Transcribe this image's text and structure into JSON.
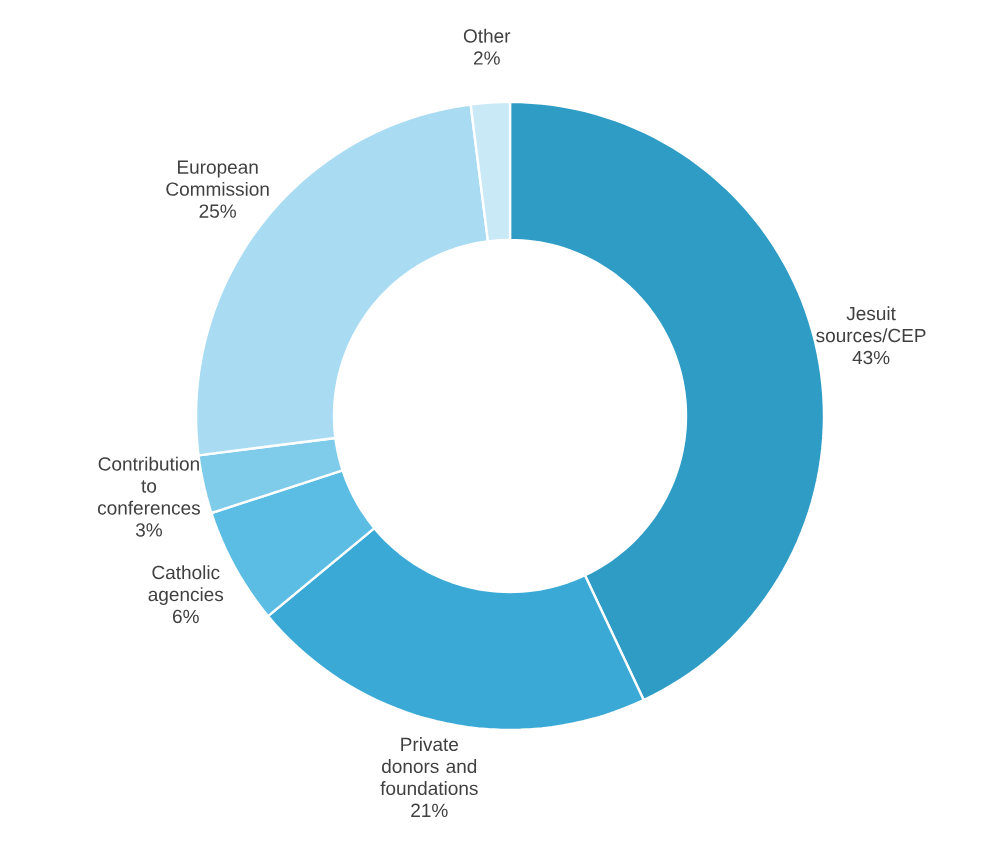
{
  "chart_data": {
    "type": "donut",
    "categories": [
      "Jesuit sources/CEP",
      "Private donors and foundations",
      "Catholic agencies",
      "Contribution to conferences",
      "European Commission",
      "Other"
    ],
    "values": [
      43,
      21,
      6,
      3,
      25,
      2
    ],
    "value_labels": [
      "43%",
      "21%",
      "6%",
      "3%",
      "25%",
      "2%"
    ],
    "colors": [
      "#2f9cc6",
      "#3aa9d6",
      "#5bbde3",
      "#7ecbea",
      "#a9dcf2",
      "#c9e9f7"
    ]
  }
}
